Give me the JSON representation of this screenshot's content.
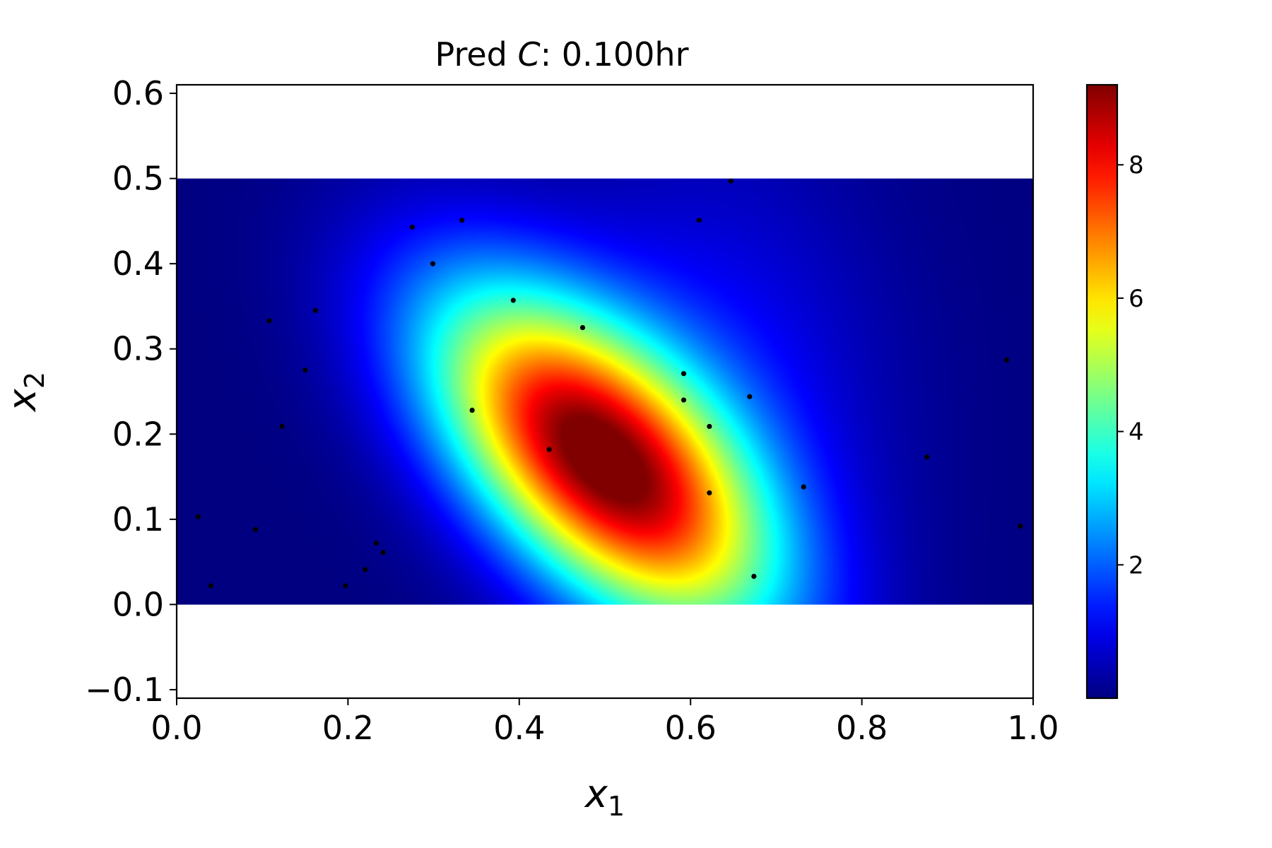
{
  "chart_data": {
    "type": "heatmap",
    "title_prefix": "Pred ",
    "title_var": "C",
    "title_suffix": ":  0.100hr",
    "xlabel": "x",
    "xlabel_sub": "1",
    "ylabel": "x",
    "ylabel_sub": "2",
    "xlim": [
      0.0,
      1.0
    ],
    "ylim": [
      -0.11,
      0.61
    ],
    "data_extent": {
      "x": [
        0.0,
        1.0
      ],
      "y": [
        0.0,
        0.5
      ]
    },
    "x_ticks": [
      0.0,
      0.2,
      0.4,
      0.6,
      0.8,
      1.0
    ],
    "x_tick_labels": [
      "0.0",
      "0.2",
      "0.4",
      "0.6",
      "0.8",
      "1.0"
    ],
    "y_ticks": [
      -0.1,
      0.0,
      0.1,
      0.2,
      0.3,
      0.4,
      0.5,
      0.6
    ],
    "y_tick_labels": [
      "−0.1",
      "0.0",
      "0.1",
      "0.2",
      "0.3",
      "0.4",
      "0.5",
      "0.6"
    ],
    "colormap": "jet",
    "colorbar_range": [
      0.0,
      9.2
    ],
    "colorbar_ticks": [
      2,
      4,
      6,
      8
    ],
    "colorbar_tick_labels": [
      "2",
      "4",
      "6",
      "8"
    ],
    "field_peak": {
      "x": 0.49,
      "y": 0.175,
      "value": 9.0
    },
    "sample_points": [
      {
        "x": 0.025,
        "y": 0.103
      },
      {
        "x": 0.04,
        "y": 0.022
      },
      {
        "x": 0.092,
        "y": 0.088
      },
      {
        "x": 0.108,
        "y": 0.333
      },
      {
        "x": 0.123,
        "y": 0.209
      },
      {
        "x": 0.15,
        "y": 0.275
      },
      {
        "x": 0.162,
        "y": 0.345
      },
      {
        "x": 0.197,
        "y": 0.022
      },
      {
        "x": 0.22,
        "y": 0.041
      },
      {
        "x": 0.233,
        "y": 0.072
      },
      {
        "x": 0.241,
        "y": 0.061
      },
      {
        "x": 0.275,
        "y": 0.443
      },
      {
        "x": 0.299,
        "y": 0.4
      },
      {
        "x": 0.333,
        "y": 0.451
      },
      {
        "x": 0.345,
        "y": 0.228
      },
      {
        "x": 0.393,
        "y": 0.357
      },
      {
        "x": 0.435,
        "y": 0.182
      },
      {
        "x": 0.474,
        "y": 0.325
      },
      {
        "x": 0.592,
        "y": 0.271
      },
      {
        "x": 0.592,
        "y": 0.24
      },
      {
        "x": 0.61,
        "y": 0.451
      },
      {
        "x": 0.622,
        "y": 0.209
      },
      {
        "x": 0.622,
        "y": 0.131
      },
      {
        "x": 0.647,
        "y": 0.497
      },
      {
        "x": 0.669,
        "y": 0.244
      },
      {
        "x": 0.674,
        "y": 0.033
      },
      {
        "x": 0.732,
        "y": 0.138
      },
      {
        "x": 0.876,
        "y": 0.173
      },
      {
        "x": 0.969,
        "y": 0.287
      },
      {
        "x": 0.985,
        "y": 0.092
      }
    ]
  }
}
